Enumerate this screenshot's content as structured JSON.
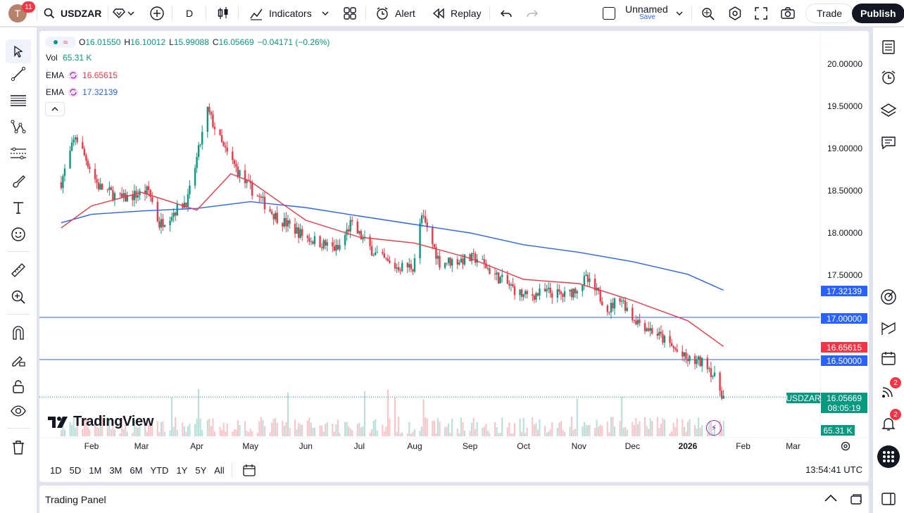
{
  "header": {
    "avatar_letter": "T",
    "avatar_badge": "11",
    "symbol": "USDZAR",
    "interval": "D",
    "indicators_label": "Indicators",
    "alert_label": "Alert",
    "replay_label": "Replay",
    "layout_name": "Unnamed",
    "save_label": "Save",
    "trade_label": "Trade",
    "publish_label": "Publish"
  },
  "legend": {
    "ohlc": {
      "o_label": "O",
      "o": "16.01550",
      "h_label": "H",
      "h": "16.10012",
      "l_label": "L",
      "l": "15.99088",
      "c_label": "C",
      "c": "16.05669",
      "change": "−0.04171 (−0.26%)"
    },
    "vol_label": "Vol",
    "vol_value": "65.31 K",
    "ema1_label": "EMA",
    "ema1_value": "16.65615",
    "ema2_label": "EMA",
    "ema2_value": "17.32139"
  },
  "price_axis": {
    "ticks": [
      "20.00000",
      "19.50000",
      "19.00000",
      "18.50000",
      "18.00000",
      "17.50000"
    ],
    "labels": {
      "ema_slow": "17.32139",
      "level_17": "17.00000",
      "ema_fast": "16.65615",
      "level_165": "16.50000",
      "symbol": "USDZAR",
      "last": "16.05669",
      "countdown": "08:05:19",
      "volume": "65.31 K"
    }
  },
  "time_axis": [
    "Feb",
    "Mar",
    "Apr",
    "May",
    "Jun",
    "Jul",
    "Aug",
    "Sep",
    "Oct",
    "Nov",
    "Dec",
    "2026",
    "Feb",
    "Mar"
  ],
  "watermark": "TradingView",
  "ranges": [
    "1D",
    "5D",
    "1M",
    "3M",
    "6M",
    "YTD",
    "1Y",
    "5Y",
    "All"
  ],
  "clock": "13:54:41 UTC",
  "bottom_panel": {
    "title": "Trading Panel"
  },
  "right_badges": {
    "notifications": "2",
    "alerts": "2"
  },
  "colors": {
    "up": "#089981",
    "down": "#f23645",
    "ema_fast": "#f23645",
    "ema_slow": "#2962ff",
    "hline": "#2962ff",
    "accent": "#131722"
  },
  "chart_data": {
    "type": "candlestick",
    "symbol": "USDZAR",
    "interval": "D",
    "y_range": [
      15.8,
      20.2
    ],
    "hlines": [
      17.0,
      16.5
    ],
    "last_price": 16.05669,
    "ema_fast": [
      {
        "x": "2025-01-15",
        "y": 18.06
      },
      {
        "x": "2025-02-01",
        "y": 18.32
      },
      {
        "x": "2025-03-01",
        "y": 18.48
      },
      {
        "x": "2025-04-01",
        "y": 18.27
      },
      {
        "x": "2025-04-20",
        "y": 18.7
      },
      {
        "x": "2025-05-01",
        "y": 18.61
      },
      {
        "x": "2025-06-01",
        "y": 18.15
      },
      {
        "x": "2025-07-01",
        "y": 17.95
      },
      {
        "x": "2025-08-01",
        "y": 17.88
      },
      {
        "x": "2025-09-01",
        "y": 17.7
      },
      {
        "x": "2025-10-01",
        "y": 17.45
      },
      {
        "x": "2025-11-01",
        "y": 17.4
      },
      {
        "x": "2025-12-01",
        "y": 17.2
      },
      {
        "x": "2026-01-01",
        "y": 16.96
      },
      {
        "x": "2026-01-21",
        "y": 16.65615
      }
    ],
    "ema_slow": [
      {
        "x": "2025-01-15",
        "y": 18.12
      },
      {
        "x": "2025-02-01",
        "y": 18.22
      },
      {
        "x": "2025-03-01",
        "y": 18.26
      },
      {
        "x": "2025-04-01",
        "y": 18.29
      },
      {
        "x": "2025-05-01",
        "y": 18.37
      },
      {
        "x": "2025-06-01",
        "y": 18.3
      },
      {
        "x": "2025-07-01",
        "y": 18.2
      },
      {
        "x": "2025-08-01",
        "y": 18.1
      },
      {
        "x": "2025-09-01",
        "y": 18.0
      },
      {
        "x": "2025-10-01",
        "y": 17.86
      },
      {
        "x": "2025-11-01",
        "y": 17.77
      },
      {
        "x": "2025-12-01",
        "y": 17.66
      },
      {
        "x": "2026-01-01",
        "y": 17.51
      },
      {
        "x": "2026-01-21",
        "y": 17.32139
      }
    ],
    "close_path": [
      {
        "x": "2025-01-15",
        "y": 18.6
      },
      {
        "x": "2025-01-23",
        "y": 19.15
      },
      {
        "x": "2025-02-05",
        "y": 18.55
      },
      {
        "x": "2025-02-18",
        "y": 18.4
      },
      {
        "x": "2025-03-05",
        "y": 18.5
      },
      {
        "x": "2025-03-11",
        "y": 18.1
      },
      {
        "x": "2025-03-27",
        "y": 18.4
      },
      {
        "x": "2025-04-07",
        "y": 19.45
      },
      {
        "x": "2025-04-16",
        "y": 19.0
      },
      {
        "x": "2025-04-28",
        "y": 18.6
      },
      {
        "x": "2025-05-15",
        "y": 18.2
      },
      {
        "x": "2025-06-01",
        "y": 17.95
      },
      {
        "x": "2025-06-19",
        "y": 17.8
      },
      {
        "x": "2025-06-26",
        "y": 18.1
      },
      {
        "x": "2025-07-10",
        "y": 17.75
      },
      {
        "x": "2025-07-20",
        "y": 17.6
      },
      {
        "x": "2025-07-31",
        "y": 17.6
      },
      {
        "x": "2025-08-05",
        "y": 18.2
      },
      {
        "x": "2025-08-15",
        "y": 17.65
      },
      {
        "x": "2025-09-05",
        "y": 17.7
      },
      {
        "x": "2025-09-15",
        "y": 17.5
      },
      {
        "x": "2025-10-01",
        "y": 17.25
      },
      {
        "x": "2025-10-15",
        "y": 17.3
      },
      {
        "x": "2025-10-25",
        "y": 17.25
      },
      {
        "x": "2025-11-05",
        "y": 17.45
      },
      {
        "x": "2025-11-18",
        "y": 17.1
      },
      {
        "x": "2025-11-24",
        "y": 17.25
      },
      {
        "x": "2025-12-01",
        "y": 17.0
      },
      {
        "x": "2025-12-15",
        "y": 16.8
      },
      {
        "x": "2025-12-31",
        "y": 16.5
      },
      {
        "x": "2026-01-12",
        "y": 16.45
      },
      {
        "x": "2026-01-21",
        "y": 16.06
      }
    ]
  }
}
